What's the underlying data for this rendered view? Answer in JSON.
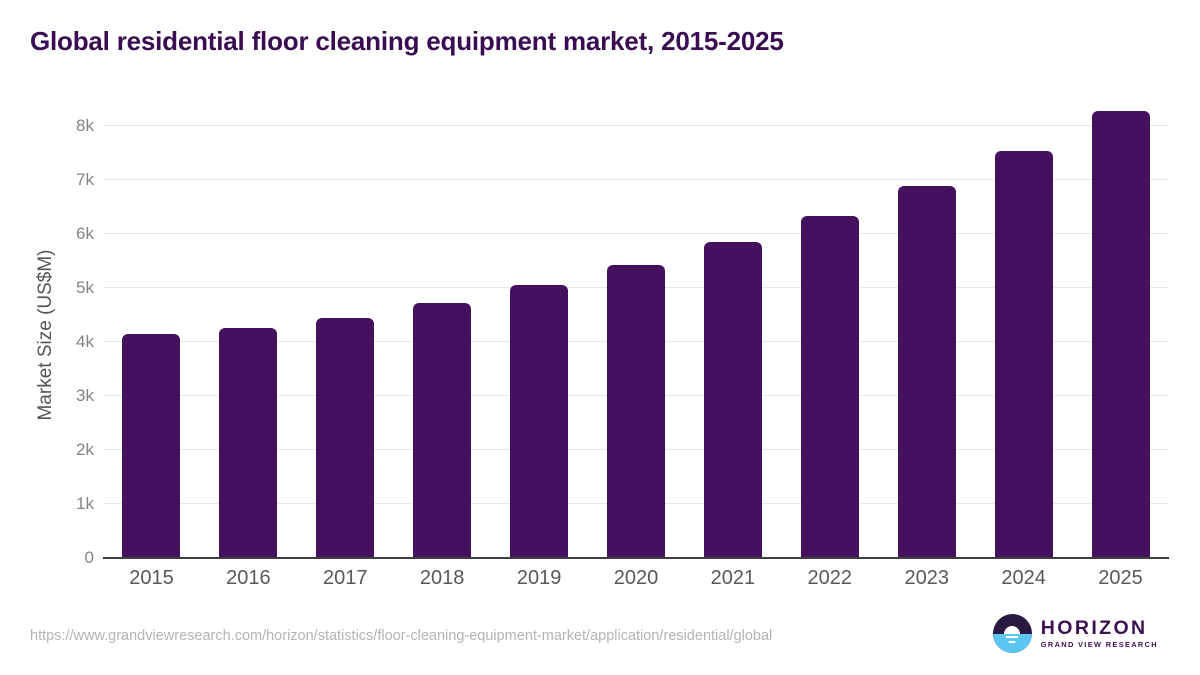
{
  "header": {
    "title": "Global residential floor cleaning equipment market, 2015-2025"
  },
  "chart_data": {
    "type": "bar",
    "title": "Global residential floor cleaning equipment market, 2015-2025",
    "categories": [
      "2015",
      "2016",
      "2017",
      "2018",
      "2019",
      "2020",
      "2021",
      "2022",
      "2023",
      "2024",
      "2025"
    ],
    "values": [
      4150,
      4250,
      4450,
      4720,
      5060,
      5430,
      5860,
      6330,
      6890,
      7530,
      8280
    ],
    "xlabel": "",
    "ylabel": "Market Size (US$M)",
    "ylim": [
      0,
      8550
    ],
    "ytick_interval": 1000,
    "ytick_labels": [
      "0",
      "1k",
      "2k",
      "3k",
      "4k",
      "5k",
      "6k",
      "7k",
      "8k"
    ],
    "grid": true,
    "legend": "none",
    "bar_color": "#45105e"
  },
  "footer": {
    "source_url": "https://www.grandviewresearch.com/horizon/statistics/floor-cleaning-equipment-market/application/residential/global",
    "logo": {
      "name": "HORIZON",
      "subtitle": "GRAND VIEW RESEARCH"
    }
  },
  "colors": {
    "title": "#3a0d52",
    "bar": "#45105e",
    "gridline": "#e7e7e7",
    "axis_line": "#3f3f3f",
    "y_tick": "#848484",
    "x_tick": "#595959",
    "url_text": "#b4b4b4",
    "logo_dark": "#29183f",
    "logo_blue": "#5cc5f1",
    "logo_text": "#3b1152"
  }
}
